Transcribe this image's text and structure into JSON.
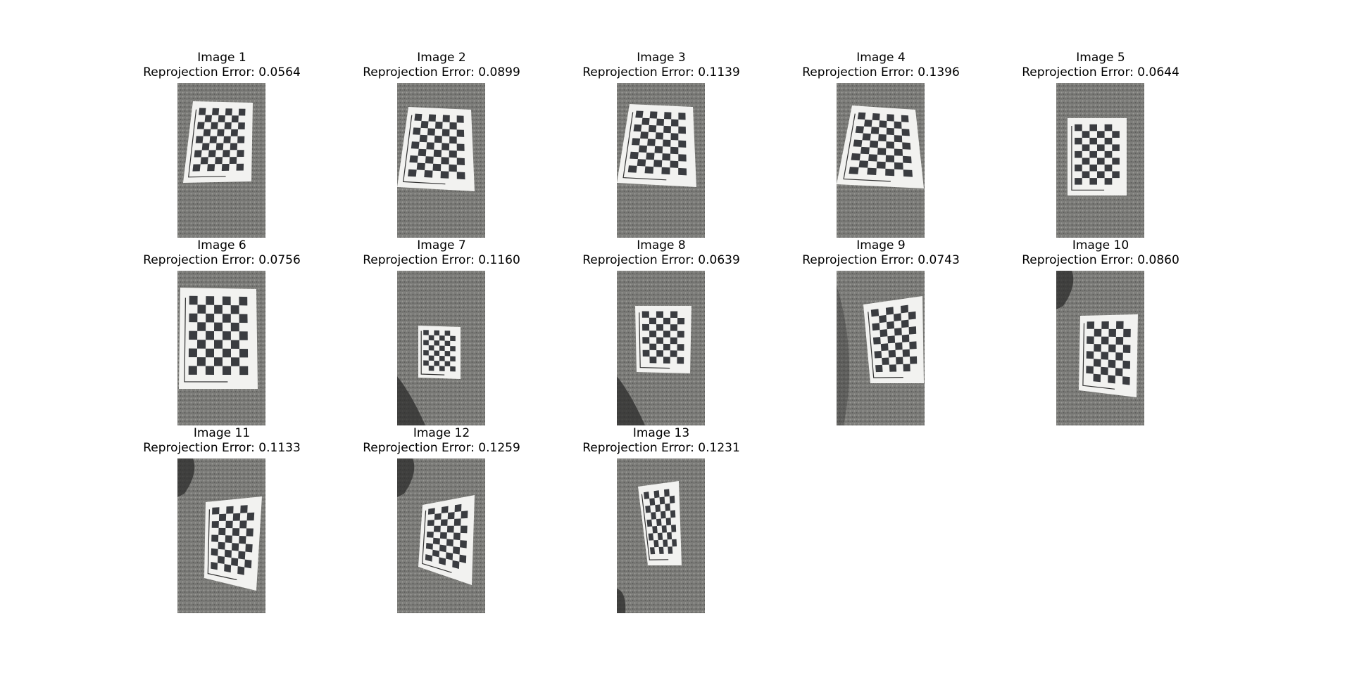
{
  "figure": {
    "panels": [
      {
        "name": "Image 1",
        "error_label": "Reprojection Error: 0.0564",
        "reprojection_error": 0.0564
      },
      {
        "name": "Image 2",
        "error_label": "Reprojection Error: 0.0899",
        "reprojection_error": 0.0899
      },
      {
        "name": "Image 3",
        "error_label": "Reprojection Error: 0.1139",
        "reprojection_error": 0.1139
      },
      {
        "name": "Image 4",
        "error_label": "Reprojection Error: 0.1396",
        "reprojection_error": 0.1396
      },
      {
        "name": "Image 5",
        "error_label": "Reprojection Error: 0.0644",
        "reprojection_error": 0.0644
      },
      {
        "name": "Image 6",
        "error_label": "Reprojection Error: 0.0756",
        "reprojection_error": 0.0756
      },
      {
        "name": "Image 7",
        "error_label": "Reprojection Error: 0.1160",
        "reprojection_error": 0.116
      },
      {
        "name": "Image 8",
        "error_label": "Reprojection Error: 0.0639",
        "reprojection_error": 0.0639
      },
      {
        "name": "Image 9",
        "error_label": "Reprojection Error: 0.0743",
        "reprojection_error": 0.0743
      },
      {
        "name": "Image 10",
        "error_label": "Reprojection Error: 0.0860",
        "reprojection_error": 0.086
      },
      {
        "name": "Image 11",
        "error_label": "Reprojection Error: 0.1133",
        "reprojection_error": 0.1133
      },
      {
        "name": "Image 12",
        "error_label": "Reprojection Error: 0.1259",
        "reprojection_error": 0.1259
      },
      {
        "name": "Image 13",
        "error_label": "Reprojection Error: 0.1231",
        "reprojection_error": 0.1231
      }
    ]
  },
  "colors": {
    "background": "#ffffff",
    "carpet": "#7a7a77",
    "paper": "#f2f2f0",
    "square_dark": "#3a3c40",
    "text": "#000000"
  }
}
